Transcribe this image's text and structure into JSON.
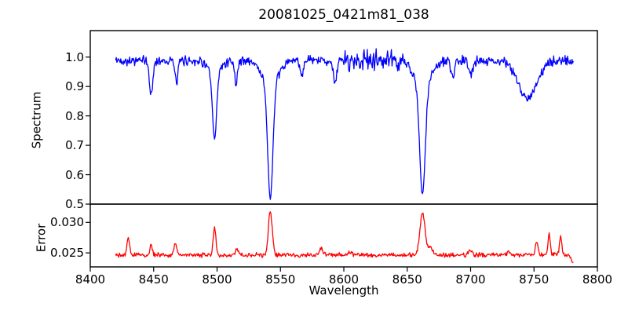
{
  "figure": {
    "title": "20081025_0421m81_038",
    "background_color": "#ffffff",
    "text_color": "#000000",
    "spine_color": "#000000"
  },
  "chart_data": {
    "type": "line",
    "title": "20081025_0421m81_038",
    "xlabel": "Wavelength",
    "grid": false,
    "legend": "none",
    "xlim": [
      8400,
      8800
    ],
    "x_ticks": [
      8400,
      8450,
      8500,
      8550,
      8600,
      8650,
      8700,
      8750,
      8800
    ],
    "x_tick_labels": [
      "8400",
      "8450",
      "8500",
      "8550",
      "8600",
      "8650",
      "8700",
      "8750",
      "8800"
    ],
    "x_data_range": [
      8420,
      8781
    ],
    "sample_step": 0.5,
    "noise_seed": 42,
    "panels": [
      {
        "name": "spectrum",
        "ylabel": "Spectrum",
        "ylim": [
          0.5,
          1.09
        ],
        "y_ticks": [
          1.0,
          0.9,
          0.8,
          0.7,
          0.6,
          0.5
        ],
        "y_tick_labels": [
          "1.0",
          "0.9",
          "0.8",
          "0.7",
          "0.6",
          "0.5"
        ],
        "line_color": "#0000ff",
        "continuum_level": 0.988,
        "noise_amplitude": 0.02,
        "noise_regions": [
          {
            "from": 8598,
            "to": 8648,
            "amplitude": 0.045
          }
        ],
        "absorption_lines": [
          {
            "center": 8448,
            "depth": 0.115,
            "sigma": 1.4
          },
          {
            "center": 8468,
            "depth": 0.075,
            "sigma": 1.2
          },
          {
            "center": 8498,
            "depth": 0.22,
            "sigma": 1.6,
            "wing_depth": 0.05,
            "wing_sigma": 4.5
          },
          {
            "center": 8515,
            "depth": 0.075,
            "sigma": 1.2
          },
          {
            "center": 8542,
            "depth": 0.38,
            "sigma": 2.0,
            "wing_depth": 0.09,
            "wing_sigma": 6.0
          },
          {
            "center": 8567,
            "depth": 0.05,
            "sigma": 1.2
          },
          {
            "center": 8593,
            "depth": 0.08,
            "sigma": 1.3
          },
          {
            "center": 8662,
            "depth": 0.37,
            "sigma": 2.2,
            "wing_depth": 0.086,
            "wing_sigma": 6.5
          },
          {
            "center": 8686,
            "depth": 0.06,
            "sigma": 1.5
          },
          {
            "center": 8700,
            "depth": 0.05,
            "sigma": 1.5
          },
          {
            "center": 8745,
            "depth": 0.125,
            "sigma": 7.5
          }
        ],
        "observed_minima": [
          {
            "center": 8498,
            "value": 0.72
          },
          {
            "center": 8542,
            "value": 0.52
          },
          {
            "center": 8662,
            "value": 0.53
          },
          {
            "center": 8745,
            "value": 0.85
          }
        ]
      },
      {
        "name": "error",
        "ylabel": "Error",
        "ylim": [
          0.0227,
          0.033
        ],
        "y_ticks": [
          0.03,
          0.025
        ],
        "y_tick_labels": [
          "0.030",
          "0.025"
        ],
        "line_color": "#ff0000",
        "continuum_level": 0.02465,
        "noise_amplitude": 0.00045,
        "noise_regions": [],
        "emission_peaks": [
          {
            "center": 8430,
            "height": 0.0028,
            "sigma": 1.0
          },
          {
            "center": 8448,
            "height": 0.0016,
            "sigma": 1.0
          },
          {
            "center": 8467,
            "height": 0.0021,
            "sigma": 1.0
          },
          {
            "center": 8498,
            "height": 0.0043,
            "sigma": 1.1
          },
          {
            "center": 8516,
            "height": 0.0009,
            "sigma": 1.2
          },
          {
            "center": 8542,
            "height": 0.0072,
            "sigma": 1.5
          },
          {
            "center": 8582,
            "height": 0.001,
            "sigma": 1.3
          },
          {
            "center": 8605,
            "height": 0.0006,
            "sigma": 1.5
          },
          {
            "center": 8662,
            "height": 0.0068,
            "sigma": 2.0
          },
          {
            "center": 8668,
            "height": 0.0012,
            "sigma": 2.0
          },
          {
            "center": 8700,
            "height": 0.0008,
            "sigma": 1.5
          },
          {
            "center": 8730,
            "height": 0.0007,
            "sigma": 1.2
          },
          {
            "center": 8752,
            "height": 0.0022,
            "sigma": 1.0
          },
          {
            "center": 8762,
            "height": 0.0036,
            "sigma": 0.9
          },
          {
            "center": 8771,
            "height": 0.003,
            "sigma": 0.9
          },
          {
            "center": 8781,
            "height": -0.0013,
            "sigma": 1.5
          }
        ],
        "observed_maxima": [
          {
            "center": 8542,
            "value": 0.032
          },
          {
            "center": 8662,
            "value": 0.032
          },
          {
            "center": 8498,
            "value": 0.029
          }
        ]
      }
    ]
  }
}
